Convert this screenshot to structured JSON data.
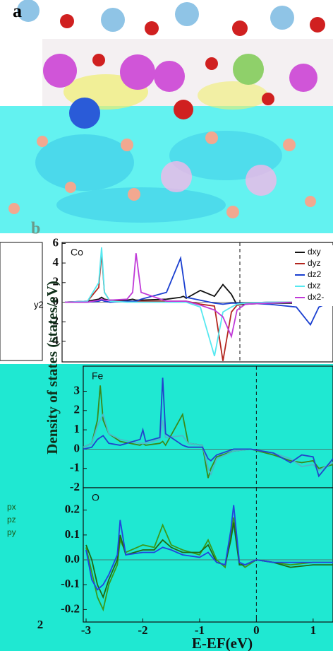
{
  "labels": {
    "panel_a": "a",
    "panel_b": "b"
  },
  "fragments": [
    "y2",
    "px",
    "pz",
    "py",
    "2"
  ],
  "chart_data": [
    {
      "type": "line",
      "title": "Co",
      "legend": "top-right",
      "vline": 0,
      "x": [
        -3.1,
        -2.7,
        -2.5,
        -2.45,
        -2.4,
        -2.3,
        -2.0,
        -1.9,
        -1.84,
        -1.75,
        -1.3,
        -1.05,
        -1.0,
        -0.95,
        -0.7,
        -0.45,
        -0.3,
        -0.15,
        -0.05,
        0.1,
        0.5,
        1.0,
        1.25,
        1.4,
        1.6
      ],
      "xlim": [
        -3.15,
        1.65
      ],
      "ylim": [
        -6.1,
        6.1
      ],
      "yticks": [
        -4,
        -2,
        0,
        2,
        4,
        6
      ],
      "series": [
        {
          "name": "dxy",
          "color": "#111111",
          "values": [
            0,
            0.1,
            0.3,
            0.5,
            0.3,
            0.2,
            0.2,
            0.3,
            0.2,
            0.2,
            0.3,
            0.5,
            0.6,
            0.4,
            1.2,
            0.6,
            1.8,
            0.8,
            -0.3,
            -0.2,
            -0.1,
            -0.1,
            -0.1,
            0,
            0
          ]
        },
        {
          "name": "dyz",
          "color": "#b3261e",
          "values": [
            0,
            0.1,
            1.5,
            5.0,
            1.0,
            0.1,
            0.1,
            0.1,
            0.1,
            0.1,
            0.1,
            0.1,
            0.1,
            0.1,
            -0.2,
            -0.4,
            -6.0,
            -1.0,
            -0.3,
            -0.1,
            0,
            0,
            0,
            0,
            0
          ]
        },
        {
          "name": "dz2",
          "color": "#1a3fd0",
          "values": [
            0,
            0,
            0.1,
            0.2,
            0.1,
            0,
            0.1,
            0.1,
            0.1,
            0.3,
            1.0,
            4.5,
            2.5,
            0.5,
            0.2,
            -0.1,
            -0.2,
            -0.1,
            -0.1,
            -0.1,
            -0.2,
            -0.5,
            -2.3,
            -0.5,
            0
          ]
        },
        {
          "name": "dxz",
          "color": "#55e8f0",
          "values": [
            0,
            0.1,
            2.0,
            5.6,
            1.0,
            0.1,
            0,
            0,
            0,
            0,
            0,
            0,
            0,
            0,
            -0.5,
            -5.5,
            -1.0,
            -0.5,
            -0.2,
            -0.1,
            0,
            0,
            0,
            0,
            0
          ]
        },
        {
          "name": "dx2-",
          "color": "#c03ad8",
          "values": [
            0,
            0,
            0.2,
            0.3,
            0.2,
            0.2,
            0.3,
            1.0,
            5.0,
            1.0,
            0.1,
            0.1,
            0.1,
            0.1,
            -0.3,
            -0.8,
            -1.5,
            -3.5,
            -0.8,
            -0.2,
            -0.1,
            0,
            0,
            0,
            0
          ]
        }
      ]
    },
    {
      "type": "line",
      "title": "Fe",
      "y_label": "Density of states (states/eV)",
      "vline": 0,
      "x": [
        -3.05,
        -2.9,
        -2.8,
        -2.75,
        -2.7,
        -2.6,
        -2.4,
        -2.05,
        -2.0,
        -1.95,
        -1.7,
        -1.65,
        -1.6,
        -1.3,
        -1.2,
        -0.95,
        -0.85,
        -0.8,
        -0.7,
        -0.4,
        -0.1,
        0.3,
        0.6,
        0.8,
        1.0,
        1.1,
        1.35
      ],
      "xlim": [
        -3.05,
        1.35
      ],
      "ylim": [
        -2,
        4.3
      ],
      "yticks": [
        -2,
        -1,
        0,
        1,
        2,
        3
      ],
      "series": [
        {
          "color": "#3a8a1a",
          "values": [
            0.1,
            0.3,
            1.5,
            3.3,
            1.5,
            0.8,
            0.4,
            0.2,
            0.3,
            0.2,
            0.3,
            0.4,
            0.2,
            1.8,
            0.3,
            0.2,
            -1.5,
            -1.0,
            -0.4,
            -0.1,
            0,
            -0.3,
            -0.6,
            -0.7,
            -0.6,
            -1.0,
            -0.8
          ]
        },
        {
          "color": "#4fb8c8",
          "values": [
            0.1,
            0.3,
            1.2,
            1.5,
            1.8,
            0.8,
            0.5,
            0.3,
            0.3,
            0.3,
            0.5,
            1.5,
            0.6,
            0.7,
            0.3,
            0.2,
            -1.0,
            -1.3,
            -0.5,
            -0.1,
            0,
            -0.2,
            -0.5,
            -0.9,
            -0.8,
            -1.1,
            -0.7
          ]
        },
        {
          "color": "#2244cc",
          "values": [
            0,
            0.1,
            0.5,
            0.6,
            0.7,
            0.3,
            0.2,
            0.5,
            1.0,
            0.4,
            0.6,
            3.7,
            0.8,
            0.2,
            0.1,
            0.1,
            -0.5,
            -0.6,
            -0.3,
            0,
            0,
            -0.2,
            -0.7,
            -0.3,
            -0.4,
            -1.4,
            -0.5
          ]
        }
      ]
    },
    {
      "type": "line",
      "title": "O",
      "x_label": "E-EF(eV)",
      "vline": 0,
      "x": [
        -3.0,
        -2.9,
        -2.8,
        -2.7,
        -2.6,
        -2.45,
        -2.4,
        -2.3,
        -2.0,
        -1.8,
        -1.65,
        -1.5,
        -1.3,
        -1.0,
        -0.85,
        -0.7,
        -0.55,
        -0.45,
        -0.4,
        -0.3,
        -0.2,
        0,
        0.3,
        0.6,
        1.0,
        1.35
      ],
      "xlim": [
        -3.05,
        1.35
      ],
      "xticks": [
        -3,
        -2,
        -1,
        0,
        1
      ],
      "ylim": [
        -0.25,
        0.29
      ],
      "yticks": [
        -0.2,
        -0.1,
        {
          "value": 0,
          "label": "0.0"
        },
        0.1,
        0.2
      ],
      "series": [
        {
          "color": "#3a9a1a",
          "values": [
            0.05,
            -0.05,
            -0.15,
            -0.2,
            -0.1,
            -0.02,
            0.08,
            0.03,
            0.06,
            0.05,
            0.14,
            0.06,
            0.04,
            0.02,
            0.08,
            0.0,
            -0.03,
            0.1,
            0.17,
            -0.01,
            -0.03,
            0.0,
            -0.01,
            -0.02,
            -0.01,
            -0.01
          ]
        },
        {
          "color": "#1f6a10",
          "values": [
            0.06,
            0.0,
            -0.1,
            -0.15,
            -0.08,
            0.0,
            0.1,
            0.02,
            0.04,
            0.04,
            0.08,
            0.05,
            0.03,
            0.03,
            0.06,
            -0.01,
            -0.02,
            0.08,
            0.15,
            -0.02,
            -0.02,
            0,
            -0.01,
            -0.03,
            -0.02,
            -0.02
          ]
        },
        {
          "color": "#2244dd",
          "values": [
            0.04,
            -0.08,
            -0.12,
            -0.1,
            -0.06,
            0.02,
            0.16,
            0.02,
            0.03,
            0.03,
            0.05,
            0.04,
            0.02,
            0.01,
            0.03,
            -0.01,
            -0.02,
            0.12,
            0.22,
            -0.01,
            -0.02,
            0,
            -0.01,
            -0.01,
            -0.01,
            -0.01
          ]
        }
      ]
    }
  ]
}
